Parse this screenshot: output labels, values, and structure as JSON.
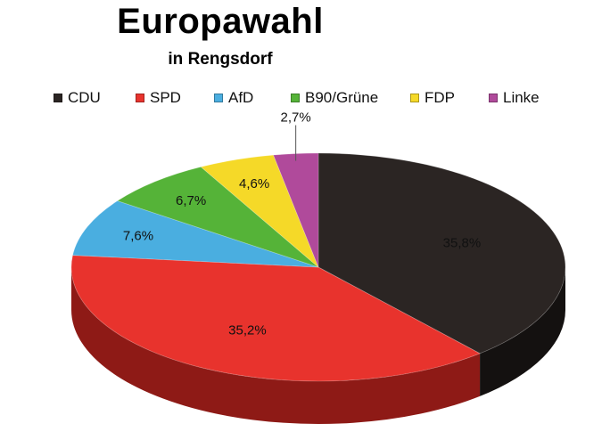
{
  "title": "Europawahl",
  "subtitle": "in Rengsdorf",
  "chart_data": {
    "type": "pie",
    "title": "Europawahl",
    "subtitle": "in Rengsdorf",
    "legend_position": "top",
    "categories": [
      "CDU",
      "SPD",
      "AfD",
      "B90/Grüne",
      "FDP",
      "Linke"
    ],
    "values": [
      35.8,
      35.2,
      7.6,
      6.7,
      4.6,
      2.7
    ],
    "labels": [
      "35,8%",
      "35,2%",
      "7,6%",
      "6,7%",
      "4,6%",
      "2,7%"
    ],
    "colors": [
      "#2b2523",
      "#e8332d",
      "#4aaee0",
      "#55b338",
      "#f5d928",
      "#b04a9b"
    ],
    "dark_colors": [
      "#141110",
      "#8e1a16",
      "#2a6e8f",
      "#2e6b1d",
      "#a08c10",
      "#6b2a5e"
    ]
  }
}
